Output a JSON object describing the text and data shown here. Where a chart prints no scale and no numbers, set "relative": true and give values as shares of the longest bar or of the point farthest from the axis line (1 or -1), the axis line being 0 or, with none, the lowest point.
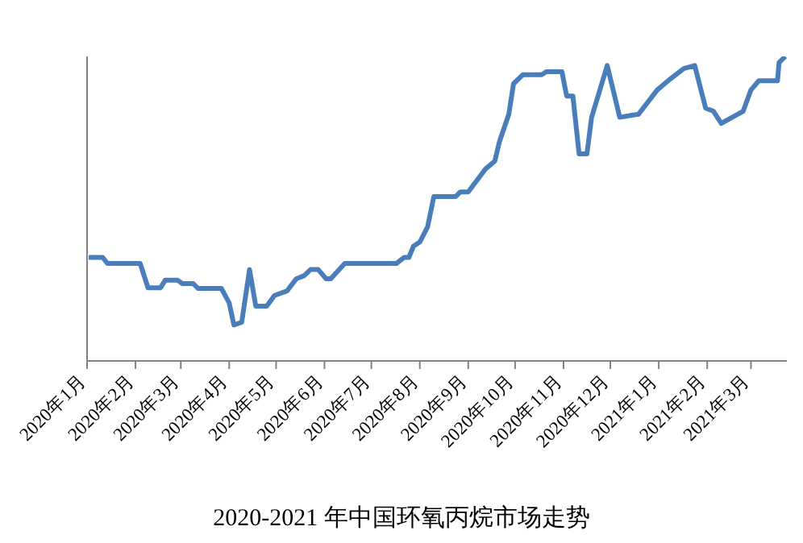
{
  "chart_data": {
    "type": "line",
    "title": "2020-2021 年中国环氧丙烷市场走势",
    "relative": true,
    "marker": "none",
    "xlim": [
      "2020-01-01",
      "2021-03-24"
    ],
    "xticks": [
      {
        "value": "2020-01",
        "label": "2020年1月"
      },
      {
        "value": "2020-02",
        "label": "2020年2月"
      },
      {
        "value": "2020-03",
        "label": "2020年3月"
      },
      {
        "value": "2020-04",
        "label": "2020年4月"
      },
      {
        "value": "2020-05",
        "label": "2020年5月"
      },
      {
        "value": "2020-06",
        "label": "2020年6月"
      },
      {
        "value": "2020-07",
        "label": "2020年7月"
      },
      {
        "value": "2020-08",
        "label": "2020年8月"
      },
      {
        "value": "2020-09",
        "label": "2020年9月"
      },
      {
        "value": "2020-10",
        "label": "2020年10月"
      },
      {
        "value": "2020-11",
        "label": "2020年11月"
      },
      {
        "value": "2020-12",
        "label": "2020年12月"
      },
      {
        "value": "2021-01",
        "label": "2021年1月"
      },
      {
        "value": "2021-02",
        "label": "2021年2月"
      },
      {
        "value": "2021-03",
        "label": "2021年3月"
      }
    ],
    "x": [
      "2020-01-02",
      "2020-01-11",
      "2020-01-14",
      "2020-02-04",
      "2020-02-09",
      "2020-02-17",
      "2020-02-20",
      "2020-02-28",
      "2020-03-02",
      "2020-03-09",
      "2020-03-12",
      "2020-03-27",
      "2020-04-01",
      "2020-04-04",
      "2020-04-09",
      "2020-04-14",
      "2020-04-18",
      "2020-04-25",
      "2020-04-30",
      "2020-05-08",
      "2020-05-14",
      "2020-05-19",
      "2020-05-23",
      "2020-05-28",
      "2020-06-02",
      "2020-06-05",
      "2020-06-14",
      "2020-07-17",
      "2020-07-22",
      "2020-07-25",
      "2020-07-28",
      "2020-08-01",
      "2020-08-06",
      "2020-08-10",
      "2020-08-24",
      "2020-08-27",
      "2020-09-01",
      "2020-09-12",
      "2020-09-18",
      "2020-09-21",
      "2020-09-27",
      "2020-09-30",
      "2020-10-06",
      "2020-10-18",
      "2020-10-21",
      "2020-10-31",
      "2020-11-03",
      "2020-11-07",
      "2020-11-11",
      "2020-11-16",
      "2020-11-19",
      "2020-11-29",
      "2020-12-07",
      "2020-12-19",
      "2020-12-31",
      "2021-01-07",
      "2021-01-17",
      "2021-01-24",
      "2021-01-31",
      "2021-02-05",
      "2021-02-10",
      "2021-02-24",
      "2021-03-01",
      "2021-03-06",
      "2021-03-18",
      "2021-03-19",
      "2021-03-23"
    ],
    "series": [
      {
        "color": "#4a7ebb",
        "values": [
          0.34,
          0.34,
          0.32,
          0.32,
          0.24,
          0.24,
          0.265,
          0.265,
          0.254,
          0.254,
          0.238,
          0.238,
          0.19,
          0.118,
          0.127,
          0.3,
          0.18,
          0.18,
          0.215,
          0.23,
          0.27,
          0.28,
          0.3,
          0.3,
          0.27,
          0.27,
          0.32,
          0.32,
          0.34,
          0.34,
          0.377,
          0.39,
          0.44,
          0.54,
          0.54,
          0.555,
          0.555,
          0.63,
          0.656,
          0.72,
          0.81,
          0.91,
          0.94,
          0.94,
          0.95,
          0.95,
          0.87,
          0.87,
          0.68,
          0.68,
          0.8,
          0.97,
          0.8,
          0.81,
          0.89,
          0.92,
          0.96,
          0.97,
          0.83,
          0.82,
          0.78,
          0.82,
          0.89,
          0.92,
          0.92,
          0.98,
          1
        ]
      }
    ]
  }
}
